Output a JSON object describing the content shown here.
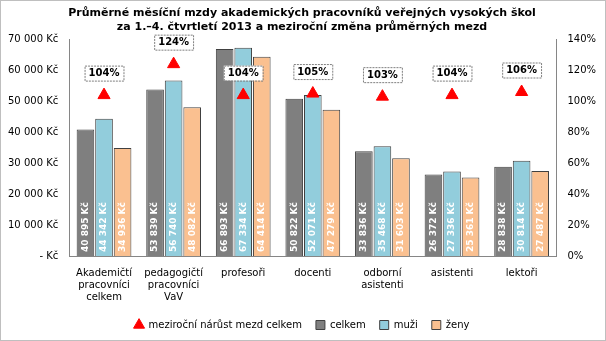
{
  "chart_data": {
    "type": "bar",
    "title": [
      "Průměrné měsíční mzdy akademických pracovníků veřejných vysokých škol",
      "za 1.–4. čtvrtletí 2013 a meziroční změna průměrných mezd"
    ],
    "categories": [
      "Akademičtí pracovníci celkem",
      "pedagogičtí pracovníci VaV",
      "profesoři",
      "docenti",
      "odborní asistenti",
      "asistenti",
      "lektoři"
    ],
    "series": [
      {
        "name": "celkem",
        "type": "bar",
        "color": "#7f7f7f",
        "values": [
          40895,
          53839,
          66893,
          50822,
          33836,
          26372,
          28838
        ],
        "value_labels": [
          "40 895 Kč",
          "53 839 Kč",
          "66 893 Kč",
          "50 822 Kč",
          "33 836 Kč",
          "26 372 Kč",
          "28 838 Kč"
        ]
      },
      {
        "name": "muži",
        "type": "bar",
        "color": "#92cddc",
        "values": [
          44342,
          56740,
          67334,
          52071,
          35468,
          27336,
          30814
        ],
        "value_labels": [
          "44 342 Kč",
          "56 740 Kč",
          "67 334 Kč",
          "52 071 Kč",
          "35 468 Kč",
          "27 336 Kč",
          "30 814 Kč"
        ]
      },
      {
        "name": "ženy",
        "type": "bar",
        "color": "#fac090",
        "values": [
          34936,
          48082,
          64414,
          47279,
          31603,
          25361,
          27487
        ],
        "value_labels": [
          "34 936 Kč",
          "48 082 Kč",
          "64 414 Kč",
          "47 279 Kč",
          "31 603 Kč",
          "25 361 Kč",
          "27 487 Kč"
        ]
      },
      {
        "name": "meziroční nárůst mezd celkem",
        "type": "scatter",
        "marker": "triangle",
        "color": "#ff0000",
        "axis": "y2",
        "values": [
          104,
          124,
          104,
          105,
          103,
          104,
          106
        ],
        "value_labels": [
          "104%",
          "124%",
          "104%",
          "105%",
          "103%",
          "104%",
          "106%"
        ]
      }
    ],
    "ylim": [
      0,
      70000
    ],
    "yticks": [
      {
        "value": 0,
        "label": "- Kč"
      },
      {
        "value": 10000,
        "label": "10 000 Kč"
      },
      {
        "value": 20000,
        "label": "20 000 Kč"
      },
      {
        "value": 30000,
        "label": "30 000 Kč"
      },
      {
        "value": 40000,
        "label": "40 000 Kč"
      },
      {
        "value": 50000,
        "label": "50 000 Kč"
      },
      {
        "value": 60000,
        "label": "60 000 Kč"
      },
      {
        "value": 70000,
        "label": "70 000 Kč"
      }
    ],
    "y2lim": [
      0,
      140
    ],
    "y2ticks": [
      {
        "value": 0,
        "label": "0%"
      },
      {
        "value": 20,
        "label": "20%"
      },
      {
        "value": 40,
        "label": "40%"
      },
      {
        "value": 60,
        "label": "60%"
      },
      {
        "value": 80,
        "label": "80%"
      },
      {
        "value": 100,
        "label": "100%"
      },
      {
        "value": 120,
        "label": "120%"
      },
      {
        "value": 140,
        "label": "140%"
      }
    ],
    "grid": false,
    "legend": "bottom",
    "data_labels": true
  }
}
